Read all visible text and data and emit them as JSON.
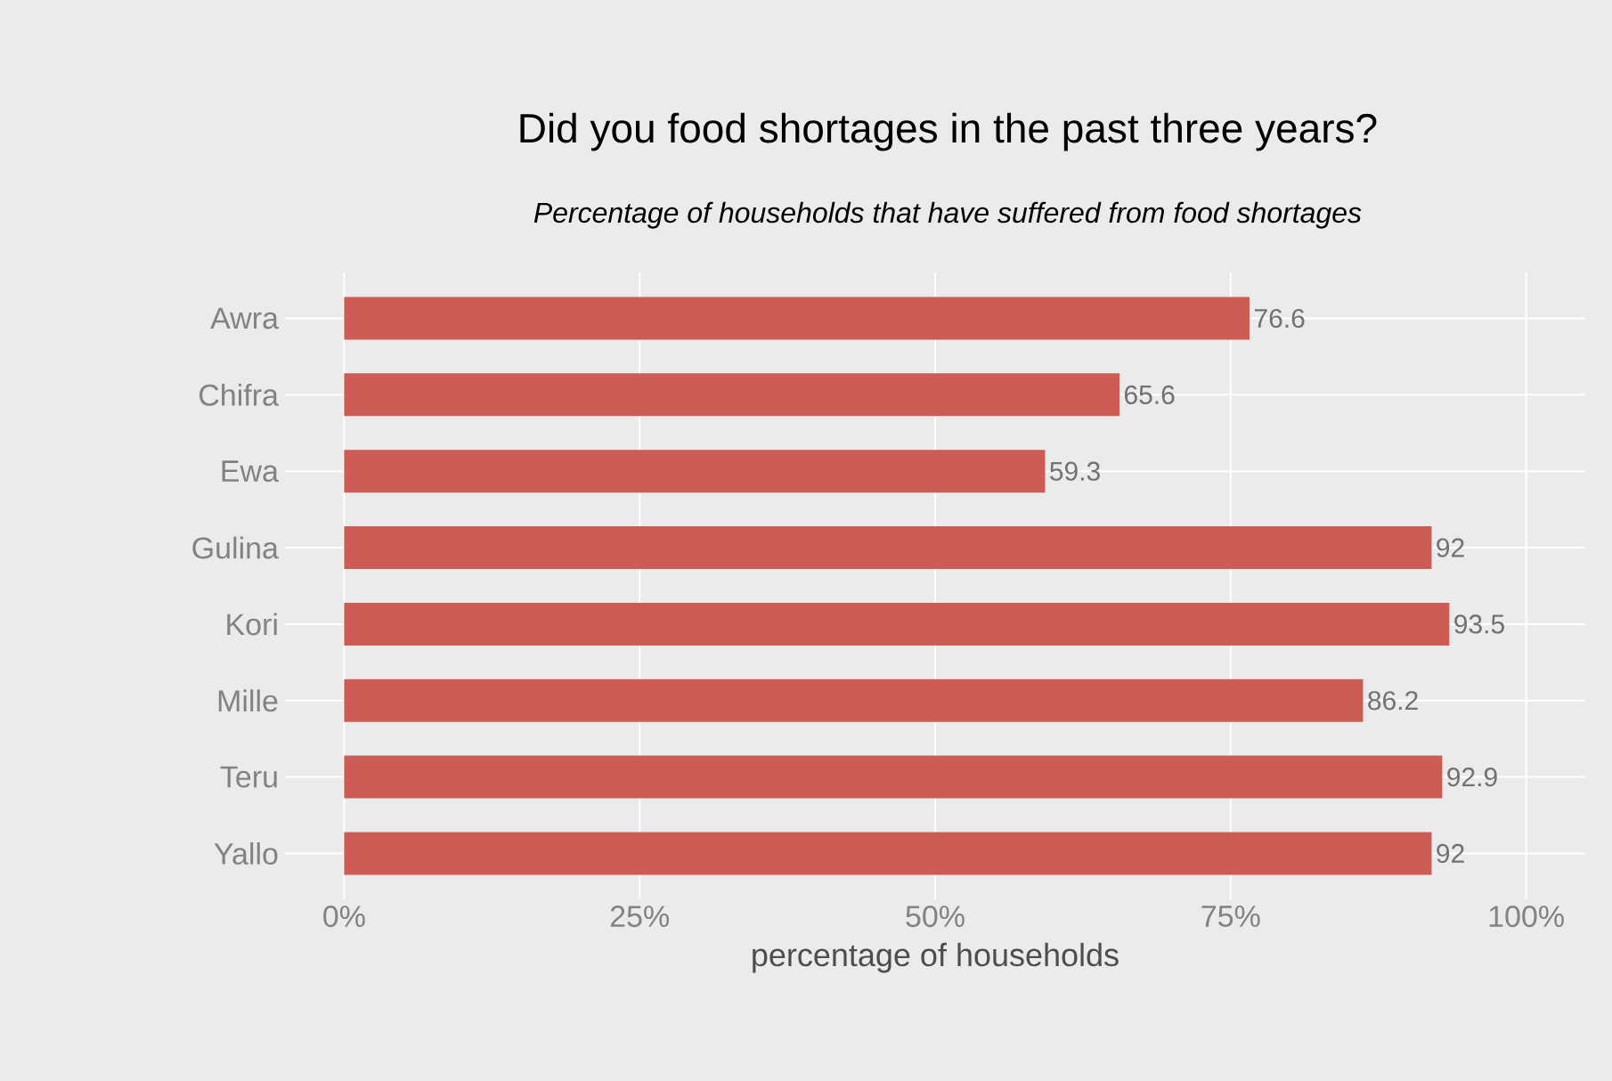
{
  "chart_data": {
    "type": "bar",
    "orientation": "horizontal",
    "title": "Did you food shortages in the past three years?",
    "subtitle": "Percentage of households that have suffered from food shortages",
    "xlabel": "percentage of households",
    "categories": [
      "Awra",
      "Chifra",
      "Ewa",
      "Gulina",
      "Kori",
      "Mille",
      "Teru",
      "Yallo"
    ],
    "values": [
      76.6,
      65.6,
      59.3,
      92,
      93.5,
      86.2,
      92.9,
      92
    ],
    "color": "#cd5c55",
    "data_labels": true,
    "grid": true,
    "xlim": [
      -5,
      105
    ],
    "xticks": [
      {
        "value": 0,
        "label": "0%"
      },
      {
        "value": 25,
        "label": "25%"
      },
      {
        "value": 50,
        "label": "50%"
      },
      {
        "value": 75,
        "label": "75%"
      },
      {
        "value": 100,
        "label": "100%"
      }
    ]
  }
}
